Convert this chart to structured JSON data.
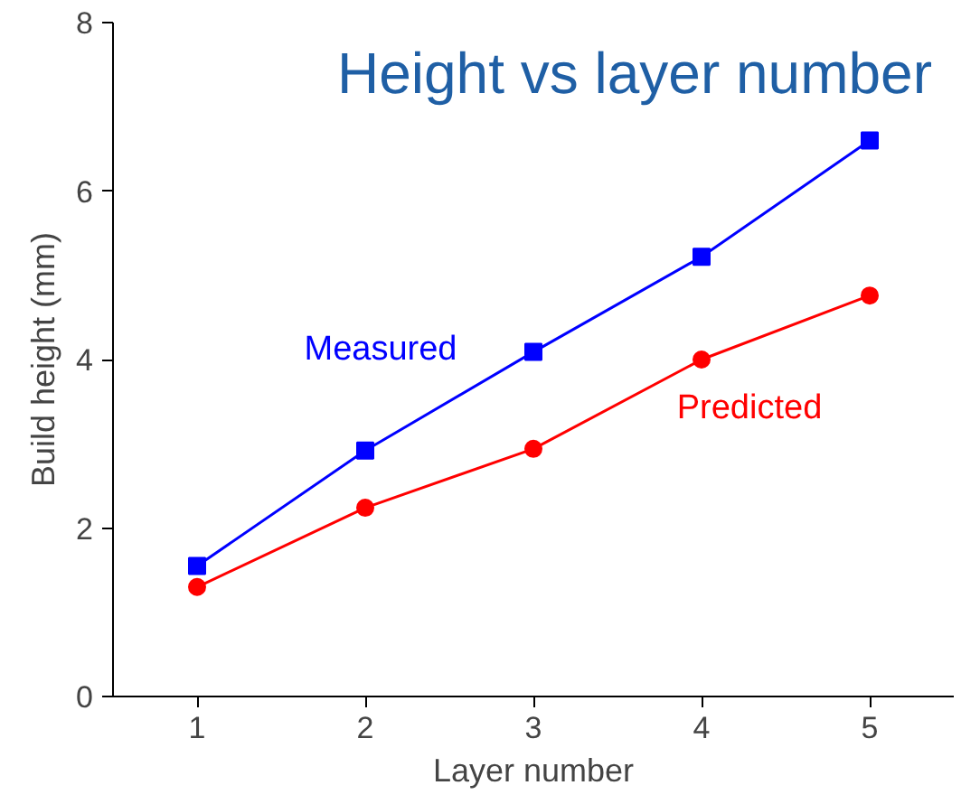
{
  "chart_data": {
    "type": "line",
    "title": "Height vs layer number",
    "xlabel": "Layer number",
    "ylabel": "Build height (mm)",
    "x": [
      1,
      2,
      3,
      4,
      5
    ],
    "series": [
      {
        "name": "Measured",
        "color": "#0000ff",
        "marker": "square",
        "values": [
          1.55,
          2.92,
          4.09,
          5.22,
          6.6
        ]
      },
      {
        "name": "Predicted",
        "color": "#ff0000",
        "marker": "circle",
        "values": [
          1.3,
          2.24,
          2.94,
          4.0,
          4.76
        ]
      }
    ],
    "xlim": [
      0.5,
      5.5
    ],
    "ylim": [
      0,
      8
    ],
    "xticks": [
      1,
      2,
      3,
      4,
      5
    ],
    "yticks": [
      0,
      2,
      4,
      6,
      8
    ],
    "grid": false,
    "legend": false,
    "line_style": "solid"
  }
}
